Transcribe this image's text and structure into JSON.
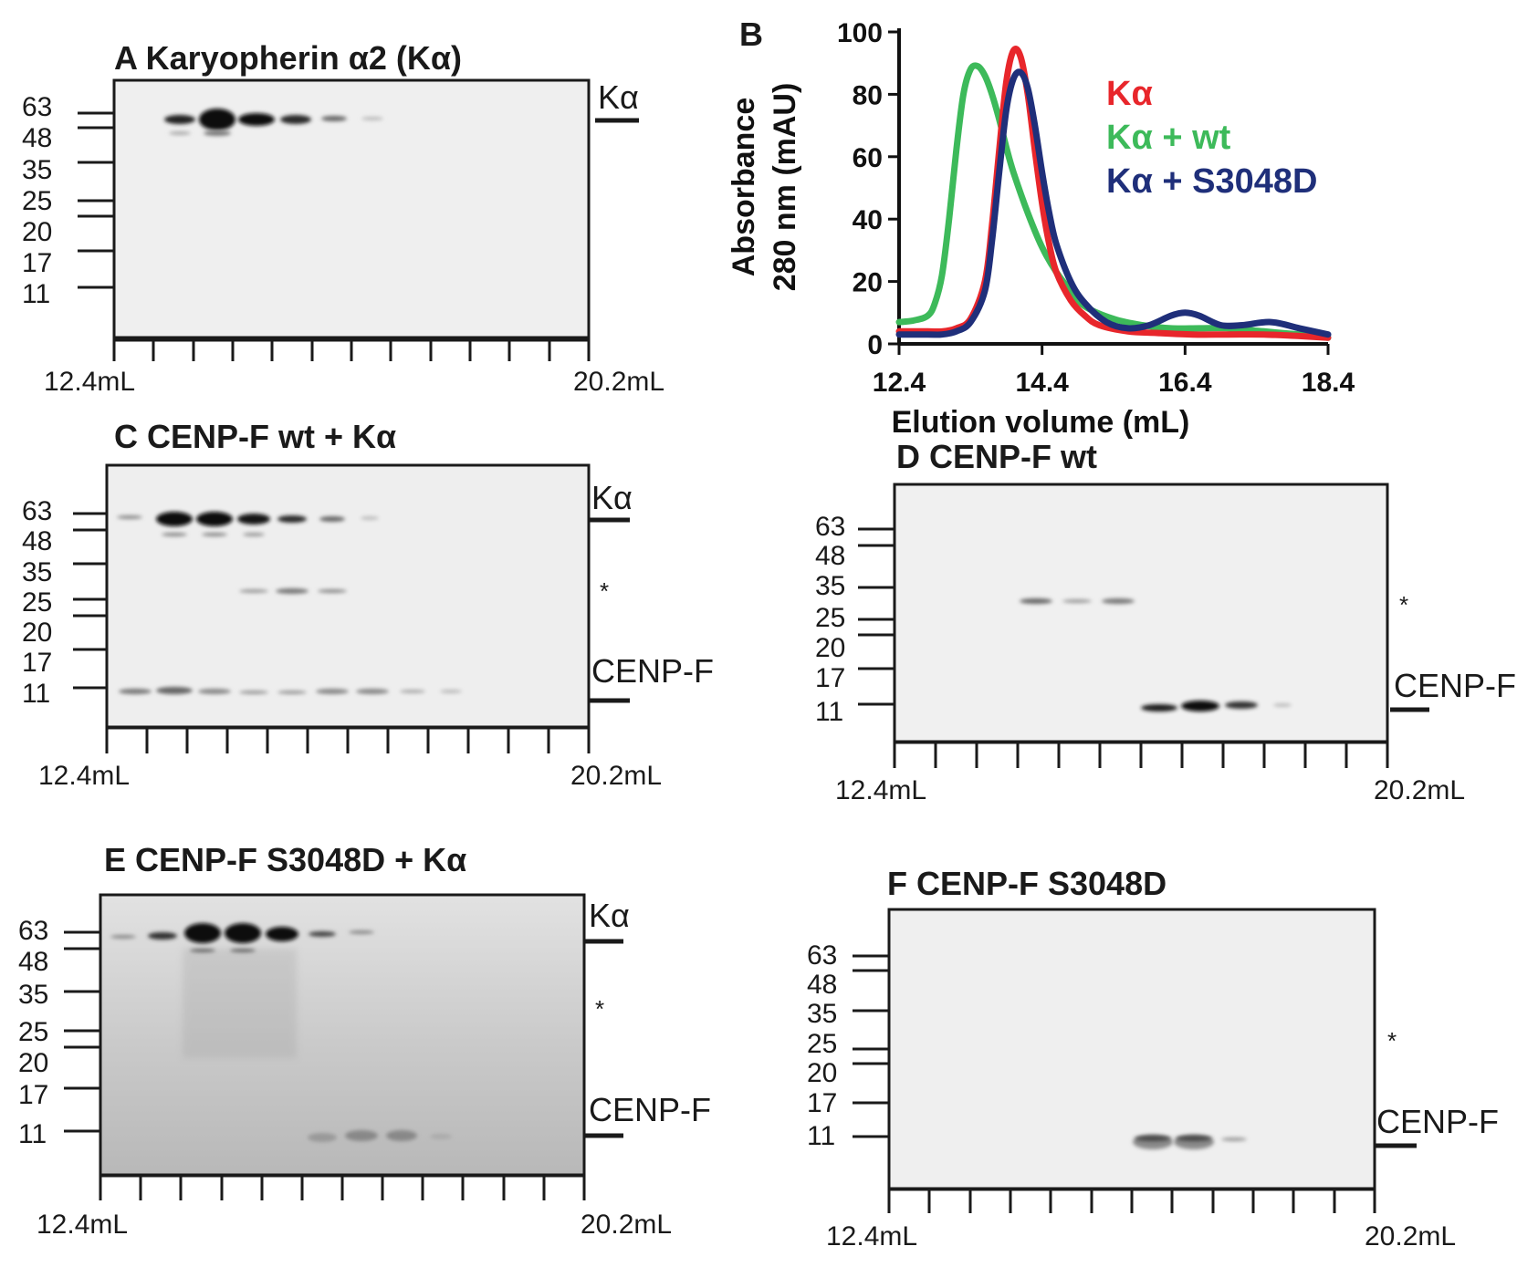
{
  "panels": {
    "A": {
      "title": "A  Karyopherin α2 (Kα)",
      "right_labels": [
        "Kα"
      ],
      "volume_start": "12.4mL",
      "volume_end": "20.2mL"
    },
    "C": {
      "title": "C CENP-F wt + Kα",
      "right_labels": [
        "Kα",
        "*",
        "CENP-F"
      ],
      "volume_start": "12.4mL",
      "volume_end": "20.2mL"
    },
    "D": {
      "title": "D  CENP-F wt",
      "right_labels": [
        "*",
        "CENP-F"
      ],
      "volume_start": "12.4mL",
      "volume_end": "20.2mL"
    },
    "E": {
      "title": "E CENP-F S3048D + Kα",
      "right_labels": [
        "Kα",
        "*",
        "CENP-F"
      ],
      "volume_start": "12.4mL",
      "volume_end": "20.2mL"
    },
    "F": {
      "title": "F  CENP-F S3048D",
      "right_labels": [
        "*",
        "CENP-F"
      ],
      "volume_start": "12.4mL",
      "volume_end": "20.2mL"
    }
  },
  "markers": [
    "63",
    "48",
    "35",
    "25",
    "20",
    "17",
    "11"
  ],
  "colors": {
    "red": "#e8262b",
    "green": "#3dba5a",
    "navy": "#1f2f7a",
    "ink": "#1a1a1a"
  },
  "chart_data": {
    "type": "line",
    "panel_label": "B",
    "title": "",
    "xlabel": "Elution volume (mL)",
    "ylabel": "Absorbance 280 nm (mAU)",
    "ylabel_lines": [
      "Absorbance",
      "280 nm (mAU)"
    ],
    "xlim": [
      12.4,
      18.4
    ],
    "ylim": [
      0,
      100
    ],
    "xticks": [
      12.4,
      14.4,
      16.4,
      18.4
    ],
    "xtick_labels": [
      "12.4",
      "14.4",
      "16.4",
      "18.4"
    ],
    "yticks": [
      0,
      20,
      40,
      60,
      80,
      100
    ],
    "ytick_labels": [
      "0",
      "20",
      "40",
      "60",
      "80",
      "100"
    ],
    "legend_position": "top-right",
    "series": [
      {
        "name": "Kα",
        "color": "#e8262b",
        "x": [
          12.4,
          12.8,
          13.0,
          13.2,
          13.4,
          13.6,
          13.7,
          13.8,
          13.9,
          14.0,
          14.1,
          14.2,
          14.3,
          14.4,
          14.5,
          14.6,
          14.8,
          15.0,
          15.2,
          15.6,
          16.0,
          16.5,
          17.0,
          17.5,
          18.0,
          18.4
        ],
        "y": [
          4,
          4,
          4,
          5,
          8,
          20,
          38,
          62,
          84,
          94,
          92,
          80,
          62,
          45,
          32,
          23,
          14,
          9,
          6,
          4,
          3.5,
          3,
          3,
          3,
          2.5,
          2
        ]
      },
      {
        "name": "Kα + wt",
        "color": "#3dba5a",
        "x": [
          12.4,
          12.6,
          12.8,
          12.9,
          13.0,
          13.1,
          13.2,
          13.3,
          13.4,
          13.5,
          13.6,
          13.7,
          13.8,
          13.9,
          14.0,
          14.2,
          14.4,
          14.6,
          14.8,
          15.0,
          15.4,
          15.8,
          16.2,
          16.6,
          17.0,
          17.5,
          18.0,
          18.4
        ],
        "y": [
          7,
          7.5,
          9,
          13,
          22,
          40,
          62,
          80,
          88,
          89,
          86,
          80,
          72,
          63,
          55,
          42,
          31,
          23,
          17,
          12,
          8,
          6,
          5,
          5,
          5,
          4,
          3,
          2
        ]
      },
      {
        "name": "Kα + S3048D",
        "color": "#1f2f7a",
        "x": [
          12.4,
          12.8,
          13.0,
          13.2,
          13.4,
          13.6,
          13.7,
          13.8,
          13.9,
          14.0,
          14.1,
          14.2,
          14.3,
          14.4,
          14.5,
          14.6,
          14.8,
          15.0,
          15.3,
          15.6,
          15.9,
          16.2,
          16.4,
          16.6,
          16.9,
          17.2,
          17.6,
          18.0,
          18.4
        ],
        "y": [
          3,
          3,
          3,
          4,
          7,
          17,
          33,
          55,
          75,
          85,
          87,
          82,
          70,
          55,
          42,
          32,
          20,
          13,
          7,
          5,
          6,
          9,
          10,
          9,
          6,
          6,
          7,
          5,
          3
        ]
      }
    ]
  }
}
